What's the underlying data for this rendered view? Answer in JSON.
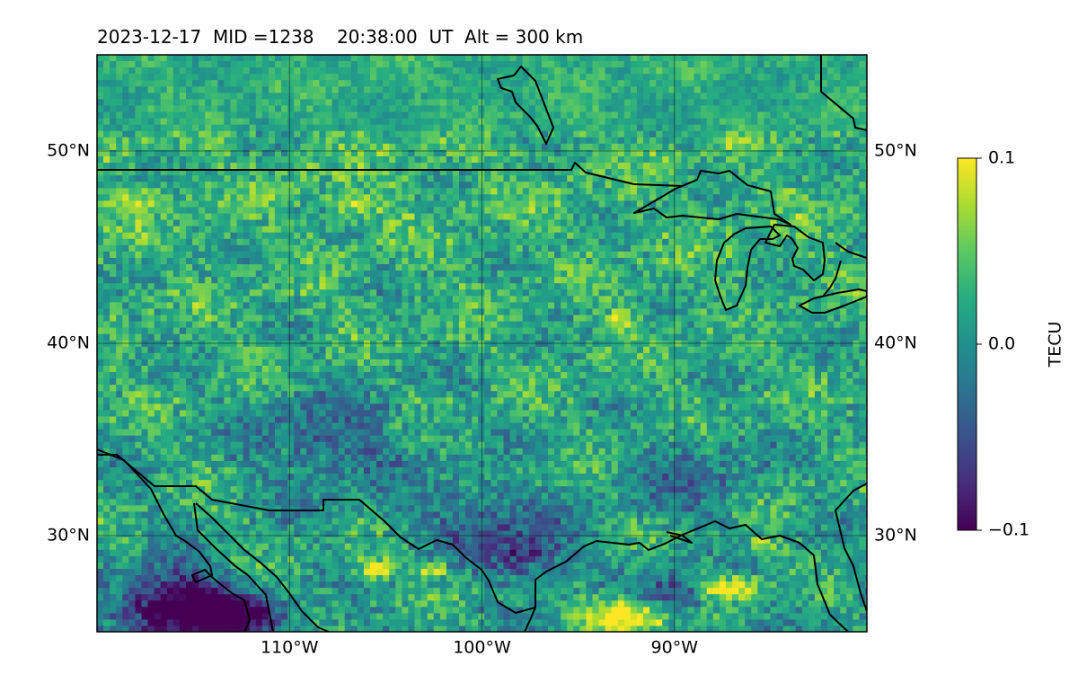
{
  "title": "2023-12-17  MID =1238    20:38:00  UT  Alt = 300 km",
  "map": {
    "lon_range": [
      -120,
      -80
    ],
    "lat_range": [
      25,
      55
    ],
    "lat_ticks": [
      {
        "value": 30,
        "label": "30°N"
      },
      {
        "value": 40,
        "label": "40°N"
      },
      {
        "value": 50,
        "label": "50°N"
      }
    ],
    "lon_ticks": [
      {
        "value": -110,
        "label": "110°W"
      },
      {
        "value": -100,
        "label": "100°W"
      },
      {
        "value": -90,
        "label": "90°W"
      }
    ],
    "grid": true,
    "field": "detrended total electron content",
    "colormap": "viridis",
    "features": [
      {
        "type": "warm",
        "lon": -92.4,
        "lat": 25.9,
        "rx": 2.4,
        "ry": 0.9,
        "amp": 1.4
      },
      {
        "type": "warm",
        "lon": -87.2,
        "lat": 27.3,
        "rx": 1.5,
        "ry": 0.6,
        "amp": 1.2
      },
      {
        "type": "warm",
        "lon": -105.4,
        "lat": 28.3,
        "rx": 1.2,
        "ry": 0.5,
        "amp": 1.0
      },
      {
        "type": "warm",
        "lon": -102.6,
        "lat": 28.2,
        "rx": 0.8,
        "ry": 0.5,
        "amp": 0.9
      },
      {
        "type": "warm",
        "lon": -106.8,
        "lat": 47.2,
        "rx": 1.2,
        "ry": 0.6,
        "amp": 0.7
      },
      {
        "type": "warm",
        "lon": -118.0,
        "lat": 47.4,
        "rx": 1.5,
        "ry": 0.6,
        "amp": 0.6
      },
      {
        "type": "warm",
        "lon": -92.7,
        "lat": 41.2,
        "rx": 0.8,
        "ry": 0.6,
        "amp": 0.6
      },
      {
        "type": "warm",
        "lon": -85.5,
        "lat": 29.6,
        "rx": 0.8,
        "ry": 0.5,
        "amp": 0.7
      },
      {
        "type": "cold",
        "lon": -116.0,
        "lat": 26.4,
        "rx": 2.7,
        "ry": 1.8,
        "amp": 1.6
      },
      {
        "type": "cold",
        "lon": -113.0,
        "lat": 25.8,
        "rx": 2.6,
        "ry": 1.1,
        "amp": 1.2
      },
      {
        "type": "cold",
        "lon": -97.5,
        "lat": 29.0,
        "rx": 2.2,
        "ry": 1.4,
        "amp": 0.8
      },
      {
        "type": "cold",
        "lon": -90.0,
        "lat": 26.8,
        "rx": 1.8,
        "ry": 1.2,
        "amp": 0.9
      },
      {
        "type": "cold",
        "lon": -108.0,
        "lat": 35.0,
        "rx": 4.0,
        "ry": 2.5,
        "amp": 0.6
      },
      {
        "type": "cold",
        "lon": -100.0,
        "lat": 31.0,
        "rx": 3.5,
        "ry": 2.0,
        "amp": 0.6
      },
      {
        "type": "cold",
        "lon": -89.0,
        "lat": 33.0,
        "rx": 3.0,
        "ry": 2.0,
        "amp": 0.5
      }
    ]
  },
  "colorbar": {
    "label": "TECU",
    "ticks": [
      {
        "value": 0.1,
        "label": "0.1"
      },
      {
        "value": 0.0,
        "label": "0.0"
      },
      {
        "value": -0.1,
        "label": "−0.1"
      }
    ],
    "vmin": -0.1,
    "vmax": 0.1
  }
}
